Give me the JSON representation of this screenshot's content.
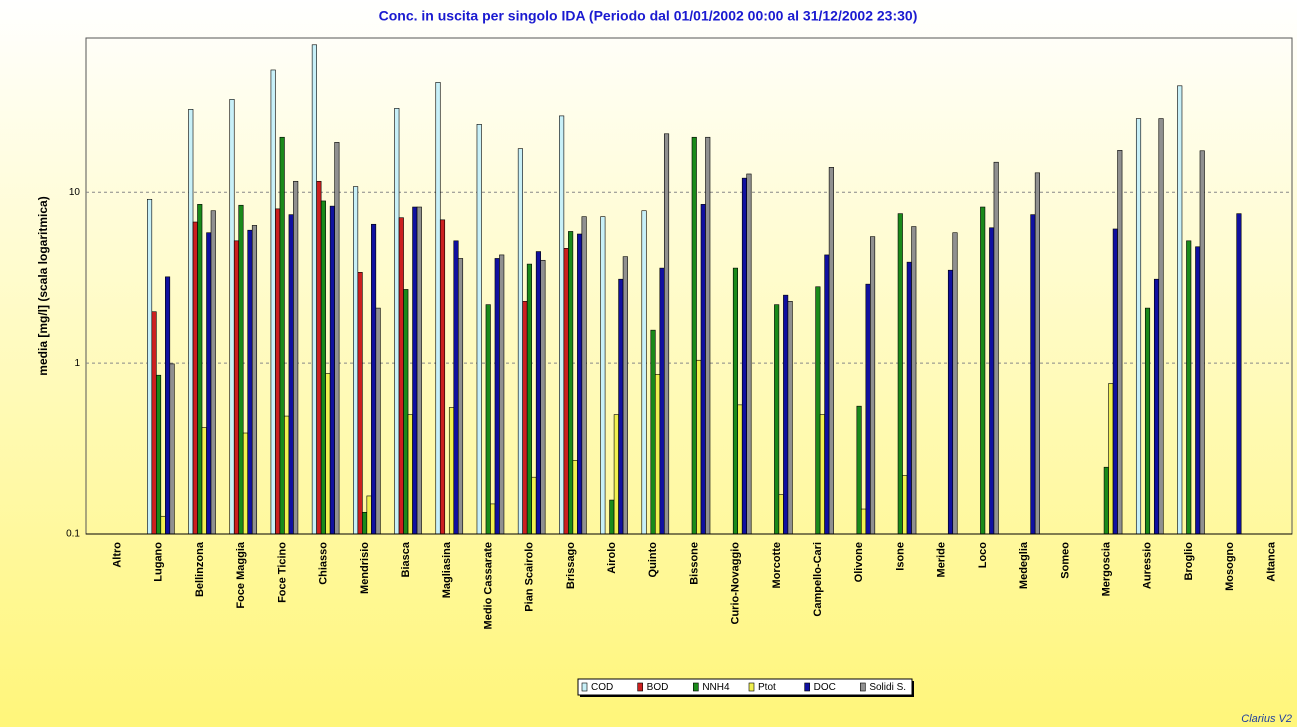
{
  "chart_data": {
    "type": "bar",
    "title": "Conc. in uscita per singolo IDA (Periodo dal 01/01/2002 00:00 al 31/12/2002 23:30)",
    "y_label": "media [mg/l] (scala logaritmica)",
    "annotation": "Clarius V2",
    "log_scale": true,
    "grid": true,
    "legend": "bottom",
    "ylim": [
      0.1,
      80
    ],
    "yticks": [
      0.1,
      1,
      10
    ],
    "categories": [
      "Altro",
      "Lugano",
      "Bellinzona",
      "Foce Maggia",
      "Foce Ticino",
      "Chiasso",
      "Mendrisio",
      "Biasca",
      "Magliasina",
      "Medio Cassarate",
      "Pian Scairolo",
      "Brissago",
      "Airolo",
      "Quinto",
      "Bissone",
      "Curio-Novaggio",
      "Morcotte",
      "Campello-Cari",
      "Olivone",
      "Isone",
      "Meride",
      "Loco",
      "Medeglia",
      "Someo",
      "Mergoscia",
      "Auressio",
      "Broglio",
      "Mosogno",
      "Altanca"
    ],
    "series": [
      {
        "name": "COD",
        "color": "#c8f0f8",
        "values": [
          null,
          9.1,
          30.6,
          35,
          52,
          73,
          10.8,
          31,
          44,
          25,
          18,
          28,
          7.2,
          7.8,
          null,
          null,
          null,
          null,
          null,
          null,
          null,
          null,
          null,
          null,
          null,
          27,
          42,
          null,
          null
        ]
      },
      {
        "name": "BOD",
        "color": "#cc2020",
        "values": [
          null,
          2.0,
          6.7,
          5.2,
          8.0,
          11.6,
          3.4,
          7.1,
          6.9,
          null,
          2.3,
          4.7,
          null,
          null,
          null,
          null,
          null,
          null,
          null,
          null,
          null,
          null,
          null,
          null,
          null,
          null,
          null,
          null,
          null
        ]
      },
      {
        "name": "NNH4",
        "color": "#1a8a1a",
        "values": [
          null,
          0.85,
          8.5,
          8.4,
          21,
          8.9,
          0.134,
          2.7,
          null,
          2.2,
          3.8,
          5.9,
          0.158,
          1.56,
          21,
          3.6,
          2.2,
          2.8,
          0.56,
          7.5,
          null,
          8.2,
          null,
          null,
          0.246,
          2.1,
          5.2,
          null,
          null
        ]
      },
      {
        "name": "Ptot",
        "color": "#f0f050",
        "values": [
          null,
          0.127,
          0.42,
          0.39,
          0.49,
          0.87,
          0.167,
          0.5,
          0.55,
          0.15,
          0.215,
          0.27,
          0.5,
          0.86,
          1.04,
          0.57,
          0.17,
          0.5,
          0.14,
          0.22,
          null,
          null,
          null,
          null,
          0.76,
          null,
          null,
          null,
          null
        ]
      },
      {
        "name": "DOC",
        "color": "#1010a0",
        "values": [
          null,
          3.2,
          5.8,
          6.0,
          7.4,
          8.3,
          6.5,
          8.2,
          5.2,
          4.1,
          4.5,
          5.7,
          3.1,
          3.6,
          8.5,
          12.1,
          2.5,
          4.3,
          2.9,
          3.9,
          3.5,
          6.2,
          7.4,
          null,
          6.1,
          3.1,
          4.8,
          7.5,
          null
        ]
      },
      {
        "name": "Solidi S.",
        "color": "#909090",
        "values": [
          null,
          0.99,
          7.8,
          6.4,
          11.6,
          19.6,
          2.1,
          8.2,
          4.1,
          4.3,
          4.0,
          7.2,
          4.2,
          22,
          21,
          12.8,
          2.3,
          14,
          5.5,
          6.3,
          5.8,
          15,
          13,
          null,
          17.6,
          27,
          17.5,
          null,
          null
        ]
      }
    ]
  }
}
